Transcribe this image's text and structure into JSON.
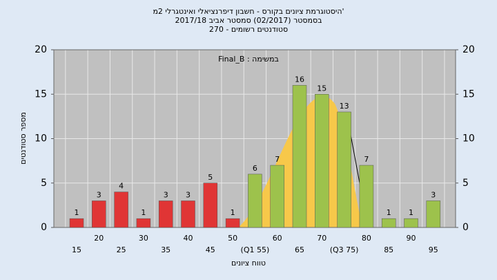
{
  "chart_data": {
    "type": "bar",
    "title_lines": [
      "היסטוגרמת ציונים בקורס - חשבון דיפרנציאלי ואינטגרלי 2מ'",
      "בסמסטר  (02/2017)  סמסטר אביב 2017/18",
      "סטודנטים רשומים - 270"
    ],
    "annotation": "Final_B : במשימה",
    "y_label": "מספר סטודנטים",
    "x_label": "טווח ציונים",
    "categories": [
      "15",
      "20",
      "25",
      "30",
      "35",
      "40",
      "45",
      "50",
      "(Q1 55)",
      "60",
      "65",
      "70",
      "(Q3 75)",
      "80",
      "85",
      "90",
      "95"
    ],
    "values": [
      1,
      3,
      4,
      1,
      3,
      3,
      5,
      1,
      6,
      7,
      16,
      15,
      13,
      7,
      1,
      1,
      3
    ],
    "colors": [
      "#e03535",
      "#e03535",
      "#e03535",
      "#e03535",
      "#e03535",
      "#e03535",
      "#e03535",
      "#e03535",
      "#9dc24c",
      "#9dc24c",
      "#9dc24c",
      "#9dc24c",
      "#9dc24c",
      "#9dc24c",
      "#9dc24c",
      "#9dc24c",
      "#9dc24c"
    ],
    "ylim": [
      0,
      20
    ],
    "yticks": [
      0,
      5,
      10,
      15,
      20
    ],
    "grid": true
  }
}
